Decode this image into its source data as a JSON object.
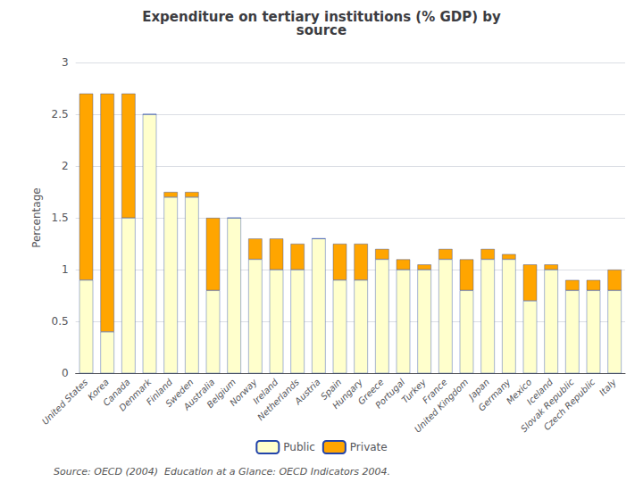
{
  "chart_data": {
    "type": "bar",
    "title": "Expenditure on tertiary institutions (% GDP) by\nsource",
    "ylabel": "Percentage",
    "annotations": [
      "Source: OECD (2004)  Education at a Glance: OECD Indicators 2004."
    ],
    "categories": [
      "United States",
      "Korea",
      "Canada",
      "Denmark",
      "Finland",
      "Sweden",
      "Australia",
      "Belgium",
      "Norway",
      "Ireland",
      "Netherlands",
      "Austria",
      "Spain",
      "Hungary",
      "Greece",
      "Portugal",
      "Turkey",
      "France",
      "United Kingdom",
      "Japan",
      "Germany",
      "Mexico",
      "Iceland",
      "Slovak Republic",
      "Czech Republic",
      "Italy"
    ],
    "series": [
      {
        "name": "Public",
        "color": "#FFFFCC",
        "values": [
          0.9,
          0.4,
          1.5,
          2.5,
          1.7,
          1.7,
          0.8,
          1.5,
          1.1,
          1.0,
          1.0,
          1.3,
          0.9,
          0.9,
          1.1,
          1.0,
          1.0,
          1.1,
          0.8,
          1.1,
          1.1,
          0.7,
          1.0,
          0.8,
          0.8,
          0.8
        ]
      },
      {
        "name": "Private",
        "color": "#FFA500",
        "values": [
          1.8,
          2.3,
          1.2,
          0.0,
          0.05,
          0.05,
          0.7,
          0.0,
          0.2,
          0.3,
          0.25,
          0.0,
          0.35,
          0.35,
          0.1,
          0.1,
          0.05,
          0.1,
          0.3,
          0.1,
          0.05,
          0.35,
          0.05,
          0.1,
          0.1,
          0.2
        ]
      }
    ],
    "stacked": true,
    "ylim": [
      0,
      3
    ],
    "yticks": [
      0,
      0.5,
      1,
      1.5,
      2,
      2.5,
      3
    ],
    "grid": true,
    "legend": "bottom"
  }
}
